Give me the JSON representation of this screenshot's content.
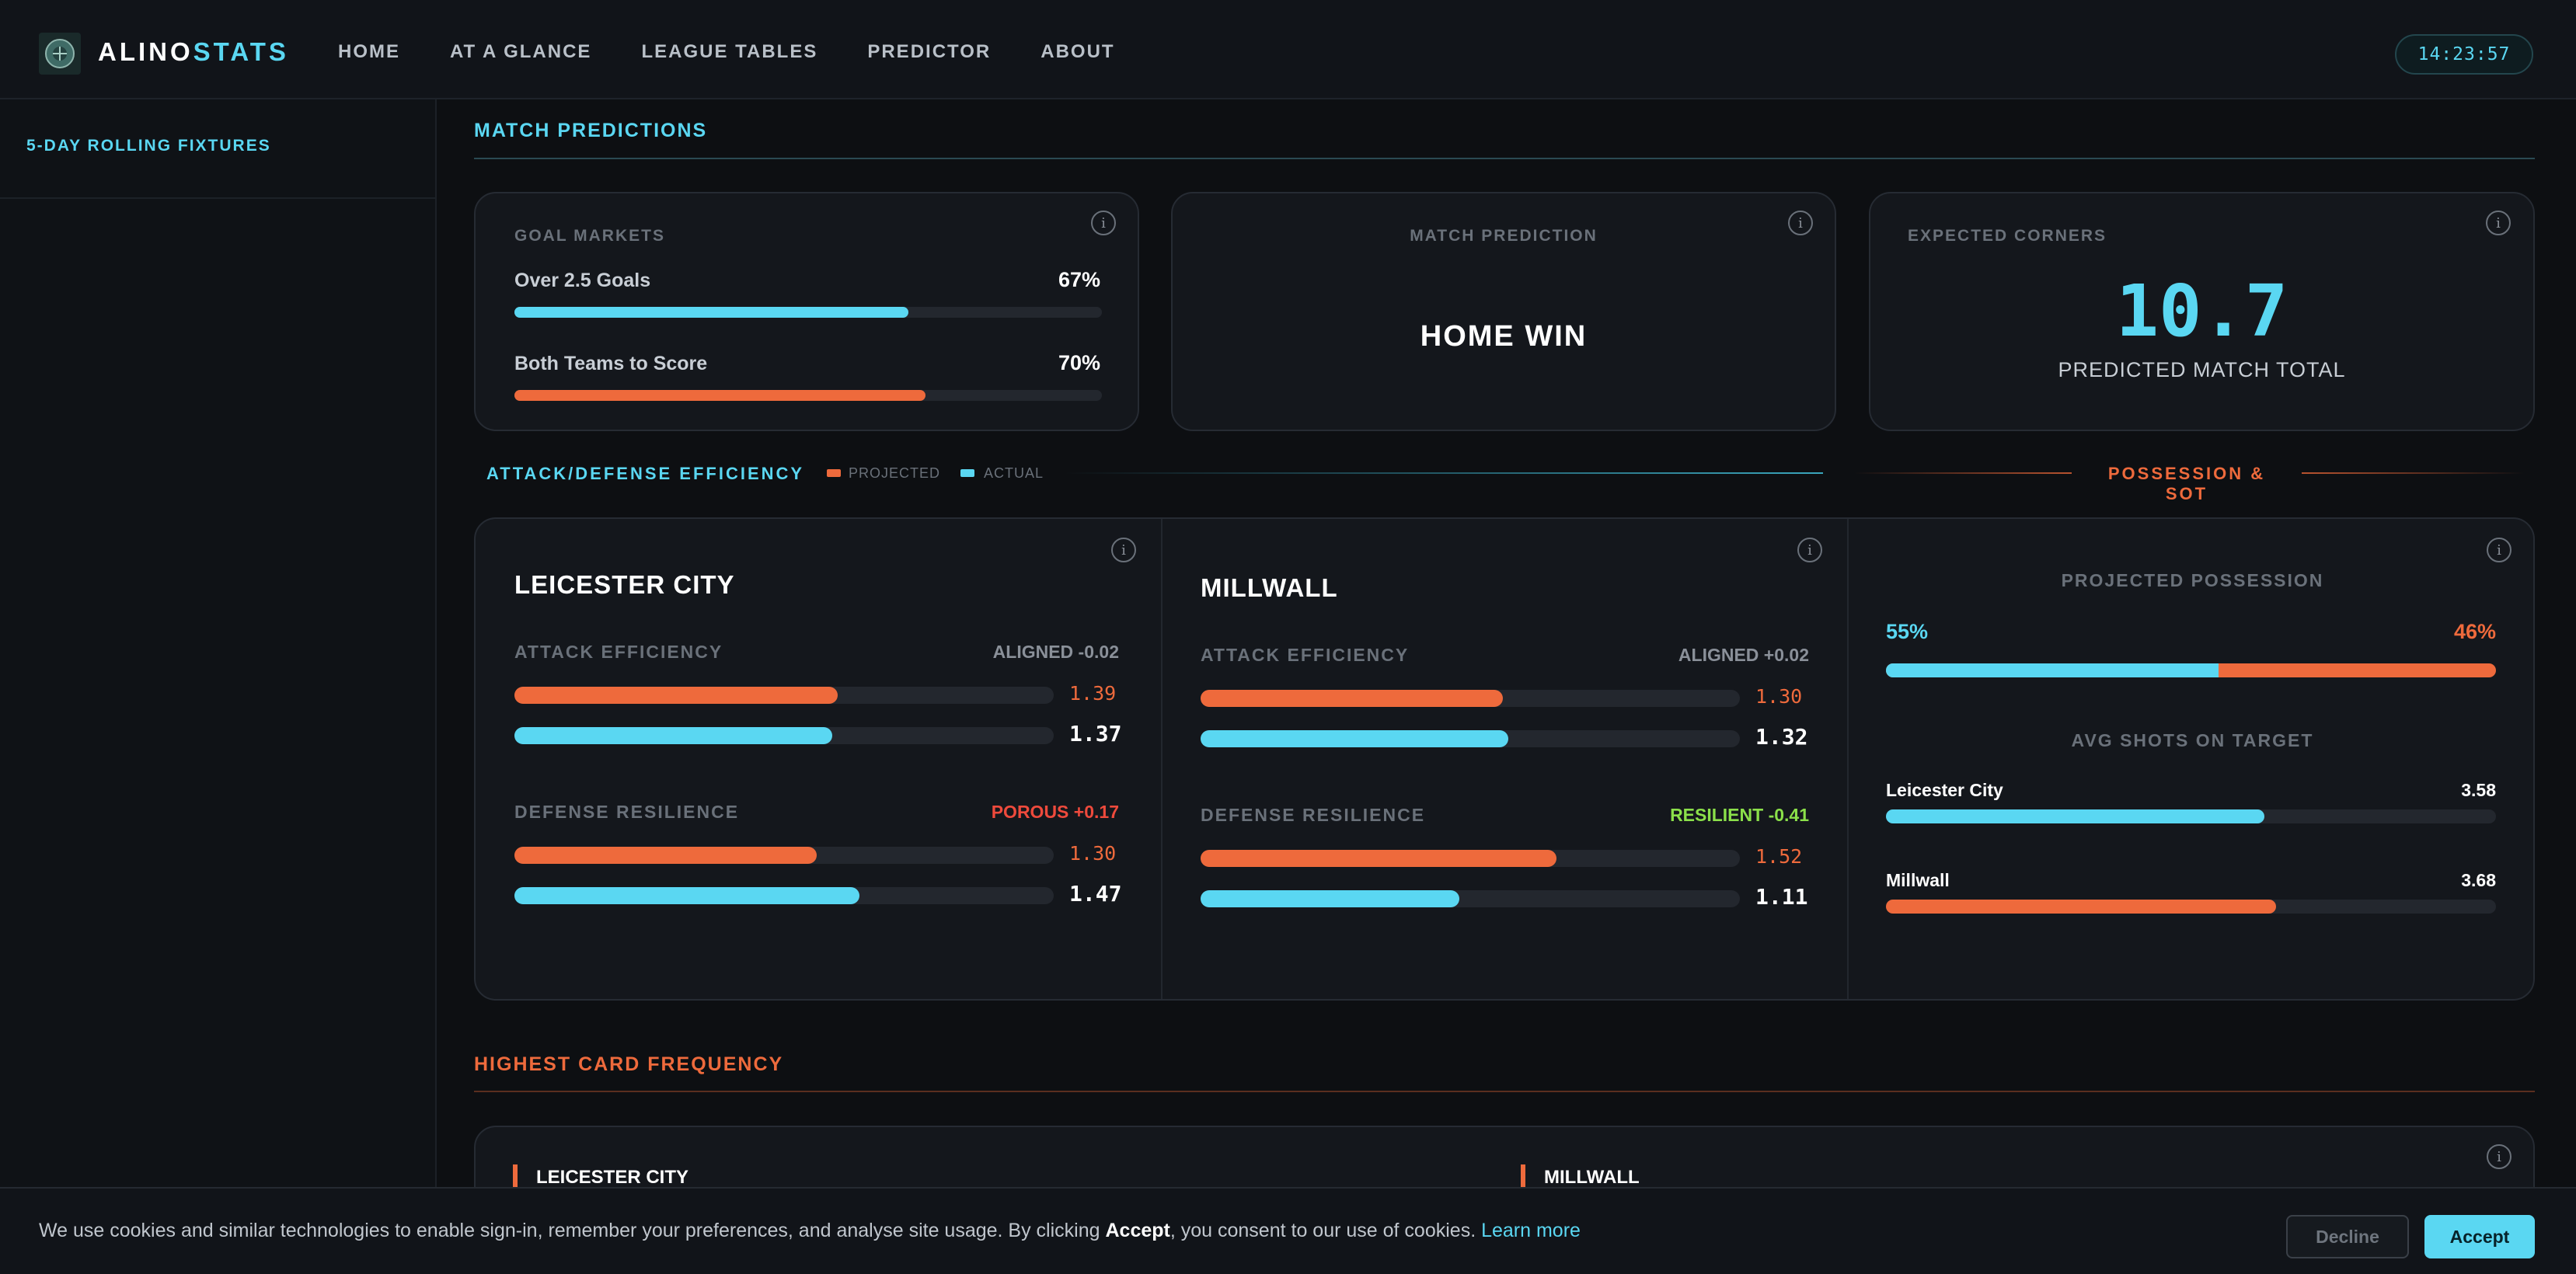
{
  "app": {
    "brand_a": "ALINO",
    "brand_b": "STATS",
    "clock": "14:23:57"
  },
  "nav": [
    "HOME",
    "AT A GLANCE",
    "LEAGUE TABLES",
    "PREDICTOR",
    "ABOUT"
  ],
  "sidebar": {
    "item": "5-DAY ROLLING FIXTURES"
  },
  "sections": {
    "match_predictions": "MATCH PREDICTIONS",
    "efficiency": "ATTACK/DEFENSE EFFICIENCY",
    "legend_projected": "PROJECTED",
    "legend_actual": "ACTUAL",
    "possession_sot": "POSSESSION & SOT",
    "cards": "HIGHEST CARD FREQUENCY"
  },
  "goal_markets": {
    "title": "GOAL MARKETS",
    "over_label": "Over 2.5 Goals",
    "over_value": "67%",
    "over_pct": 0.67,
    "btts_label": "Both Teams to Score",
    "btts_value": "70%",
    "btts_pct": 0.7
  },
  "match_prediction": {
    "title": "MATCH PREDICTION",
    "result": "HOME WIN"
  },
  "corners": {
    "title": "EXPECTED CORNERS",
    "value": "10.7",
    "caption": "PREDICTED MATCH TOTAL"
  },
  "teams": [
    {
      "name": "LEICESTER CITY",
      "attack_label": "ATTACK EFFICIENCY",
      "attack_status": "ALIGNED -0.02",
      "attack_status_color": "#8a9099",
      "attack_projected": "1.39",
      "attack_projected_pct": 0.6,
      "attack_actual": "1.37",
      "attack_actual_pct": 0.59,
      "defense_label": "DEFENSE RESILIENCE",
      "defense_status": "POROUS +0.17",
      "defense_status_color": "#ee4a3c",
      "defense_projected": "1.30",
      "defense_projected_pct": 0.56,
      "defense_actual": "1.47",
      "defense_actual_pct": 0.64
    },
    {
      "name": "MILLWALL",
      "attack_label": "ATTACK EFFICIENCY",
      "attack_status": "ALIGNED +0.02",
      "attack_status_color": "#8a9099",
      "attack_projected": "1.30",
      "attack_projected_pct": 0.56,
      "attack_actual": "1.32",
      "attack_actual_pct": 0.57,
      "defense_label": "DEFENSE RESILIENCE",
      "defense_status": "RESILIENT -0.41",
      "defense_status_color": "#8be04a",
      "defense_projected": "1.52",
      "defense_projected_pct": 0.66,
      "defense_actual": "1.11",
      "defense_actual_pct": 0.48
    }
  ],
  "possession": {
    "title": "PROJECTED POSSESSION",
    "home": "55%",
    "away": "46%",
    "home_pct": 0.545,
    "sot_title": "AVG SHOTS ON TARGET",
    "home_team": "Leicester City",
    "home_sot": "3.58",
    "home_sot_pct": 0.62,
    "away_team": "Millwall",
    "away_sot": "3.68",
    "away_sot_pct": 0.64
  },
  "cards": {
    "home": "LEICESTER CITY",
    "away": "MILLWALL"
  },
  "cookie": {
    "pre": "We use cookies and similar technologies to enable sign-in, remember your preferences, and analyse site usage. By clicking ",
    "bold": "Accept",
    "post": ", you consent to our use of cookies. ",
    "learn": "Learn more",
    "decline": "Decline",
    "accept": "Accept"
  },
  "colors": {
    "cyan": "#5ad7f2",
    "orange": "#ee6a3c"
  }
}
